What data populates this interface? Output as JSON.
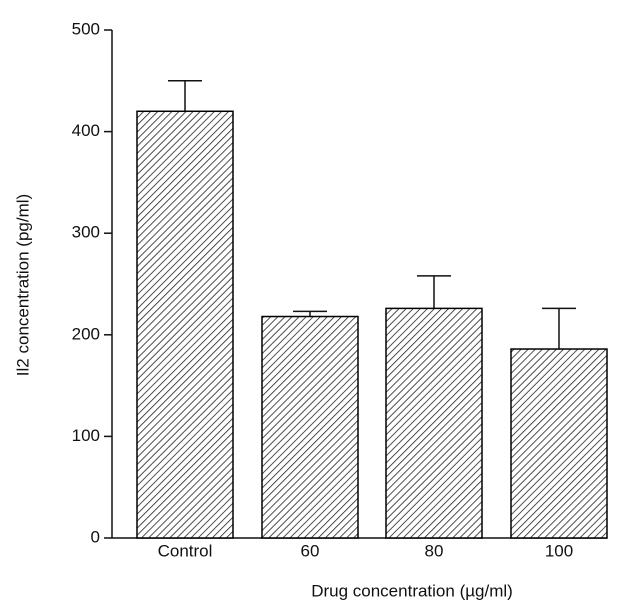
{
  "chart_data": {
    "type": "bar",
    "categories": [
      "Control",
      "60",
      "80",
      "100"
    ],
    "values": [
      420,
      218,
      226,
      186
    ],
    "errors": [
      30,
      5,
      32,
      40
    ],
    "color": "#000000",
    "ylim": [
      0,
      500
    ],
    "yticks": [
      0,
      100,
      200,
      300,
      400,
      500
    ],
    "ylabel": "Il2 concentration (pg/ml)",
    "xlabel": "Drug concentration (µg/ml)",
    "grid": false
  }
}
